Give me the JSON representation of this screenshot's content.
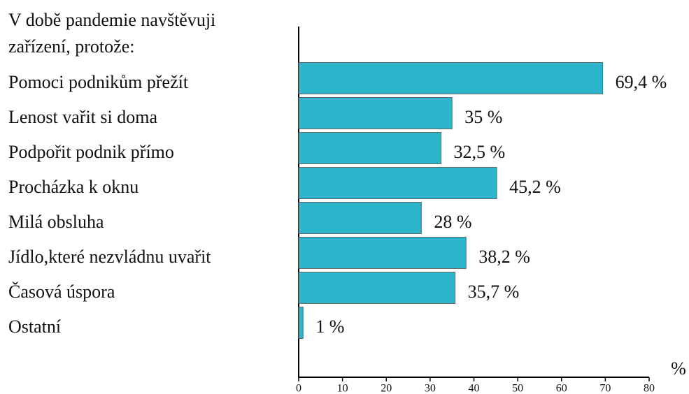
{
  "chart_data": {
    "type": "barh",
    "title": "V době pandemie navštěvuji zařízení, protože:",
    "categories": [
      "Pomoci podnikům přežít",
      "Lenost vařit si doma",
      "Podpořit podnik přímo",
      "Procházka k oknu",
      "Milá obsluha",
      "Jídlo,které nezvládnu uvařit",
      "Časová úspora",
      "Ostatní"
    ],
    "values": [
      69.4,
      35,
      32.5,
      45.2,
      28,
      38.2,
      35.7,
      1
    ],
    "value_labels": [
      "69,4 %",
      "35 %",
      "32,5 %",
      "45,2 %",
      "28 %",
      "38,2 %",
      "35,7 %",
      "1 %"
    ],
    "color": "#2db5cc",
    "x_label": "%",
    "xlim": [
      0,
      80
    ],
    "xticks": [
      0,
      10,
      20,
      30,
      40,
      50,
      60,
      70,
      80
    ]
  }
}
